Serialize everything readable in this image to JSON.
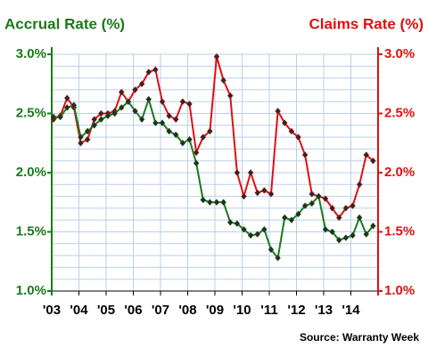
{
  "chart_data": {
    "type": "line",
    "title_left": "Accrual Rate (%)",
    "title_right": "Claims Rate (%)",
    "source": "Source: Warranty Week",
    "categories": [
      "'03",
      null,
      null,
      null,
      "'04",
      null,
      null,
      null,
      "'05",
      null,
      null,
      null,
      "'06",
      null,
      null,
      null,
      "'07",
      null,
      null,
      null,
      "'08",
      null,
      null,
      null,
      "'09",
      null,
      null,
      null,
      "'10",
      null,
      null,
      null,
      "'11",
      null,
      null,
      null,
      "'12",
      null,
      null,
      null,
      "'13",
      null,
      null,
      null,
      "'14",
      null,
      null,
      null
    ],
    "series": [
      {
        "name": "Accrual Rate (%)",
        "color": "#1a7a1a",
        "axis": "y",
        "values": [
          2.47,
          2.47,
          2.55,
          2.57,
          2.3,
          2.35,
          2.4,
          2.45,
          2.48,
          2.5,
          2.55,
          2.6,
          2.52,
          2.45,
          2.62,
          2.42,
          2.42,
          2.35,
          2.32,
          2.25,
          2.28,
          2.08,
          1.77,
          1.75,
          1.75,
          1.75,
          1.58,
          1.57,
          1.52,
          1.47,
          1.48,
          1.52,
          1.35,
          1.28,
          1.62,
          1.6,
          1.65,
          1.72,
          1.74,
          1.8,
          1.52,
          1.5,
          1.43,
          1.45,
          1.47,
          1.62,
          1.48,
          1.55
        ]
      },
      {
        "name": "Claims Rate (%)",
        "color": "#e01010",
        "axis": "y2",
        "values": [
          2.45,
          2.48,
          2.63,
          2.55,
          2.25,
          2.28,
          2.45,
          2.5,
          2.5,
          2.52,
          2.68,
          2.6,
          2.7,
          2.75,
          2.85,
          2.87,
          2.6,
          2.48,
          2.45,
          2.6,
          2.58,
          2.17,
          2.3,
          2.35,
          2.98,
          2.78,
          2.65,
          2.0,
          1.8,
          2.0,
          1.83,
          1.85,
          1.82,
          2.52,
          2.42,
          2.35,
          2.3,
          2.15,
          1.82,
          1.8,
          1.78,
          1.7,
          1.62,
          1.7,
          1.72,
          1.9,
          2.15,
          2.1
        ]
      }
    ],
    "ylim": [
      1.0,
      3.0
    ],
    "yticks": [
      {
        "value": 1.0,
        "label": "1.0%"
      },
      {
        "value": 1.5,
        "label": "1.5%"
      },
      {
        "value": 2.0,
        "label": "2.0%"
      },
      {
        "value": 2.5,
        "label": "2.5%"
      },
      {
        "value": 3.0,
        "label": "3.0%"
      }
    ],
    "y2lim": [
      1.0,
      3.0
    ],
    "y2ticks": [
      {
        "value": 1.0,
        "label": "1.0%"
      },
      {
        "value": 1.5,
        "label": "1.5%"
      },
      {
        "value": 2.0,
        "label": "2.0%"
      },
      {
        "value": 2.5,
        "label": "2.5%"
      },
      {
        "value": 3.0,
        "label": "3.0%"
      }
    ],
    "grid": true
  }
}
